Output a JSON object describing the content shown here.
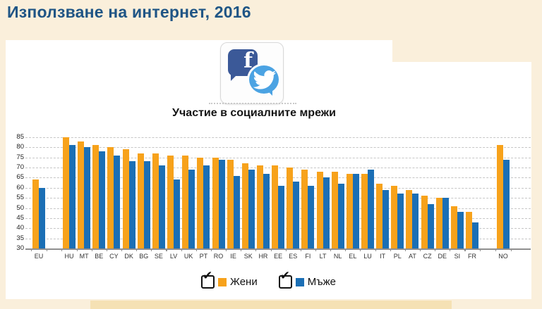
{
  "page_title": "Използване на интернет, 2016",
  "card": {
    "subtitle": "Участие в социалните мрежи",
    "icons": [
      "facebook-icon",
      "twitter-icon"
    ],
    "facebook_letter": "f"
  },
  "colors": {
    "women": "#f7a21b",
    "men": "#1b6fb5",
    "title": "#1f5585",
    "background": "#faefdb",
    "facebook": "#3b5998",
    "twitter": "#4ba3e3"
  },
  "chart_data": {
    "type": "bar",
    "title": "Участие в социалните мрежи",
    "categories": [
      "EU",
      "HU",
      "MT",
      "BE",
      "CY",
      "DK",
      "BG",
      "SE",
      "LV",
      "UK",
      "PT",
      "RO",
      "IE",
      "SK",
      "HR",
      "EE",
      "ES",
      "FI",
      "LT",
      "NL",
      "EL",
      "LU",
      "IT",
      "PL",
      "AT",
      "CZ",
      "DE",
      "SI",
      "FR",
      "NO"
    ],
    "series": [
      {
        "name": "Жени",
        "color": "#f7a21b",
        "values": [
          64,
          85,
          83,
          81,
          80,
          79,
          77,
          77,
          76,
          76,
          75,
          75,
          74,
          72,
          71,
          71,
          70,
          69,
          68,
          68,
          67,
          67,
          62,
          61,
          59,
          56,
          55,
          51,
          48,
          81
        ]
      },
      {
        "name": "Мъже",
        "color": "#1b6fb5",
        "values": [
          60,
          81,
          80,
          78,
          76,
          73,
          73,
          71,
          64,
          69,
          71,
          74,
          66,
          69,
          67,
          61,
          63,
          61,
          65,
          62,
          67,
          69,
          59,
          57,
          57,
          52,
          55,
          48,
          43,
          74
        ]
      }
    ],
    "xlabel": "",
    "ylabel": "",
    "ylim": [
      30,
      85
    ],
    "ytick_step": 5,
    "grid": true,
    "legend_position": "bottom",
    "group_gaps_after": [
      "EU",
      "FR"
    ]
  },
  "legend": {
    "items": [
      {
        "label": "Жени",
        "checked": true
      },
      {
        "label": "Мъже",
        "checked": true
      }
    ]
  }
}
